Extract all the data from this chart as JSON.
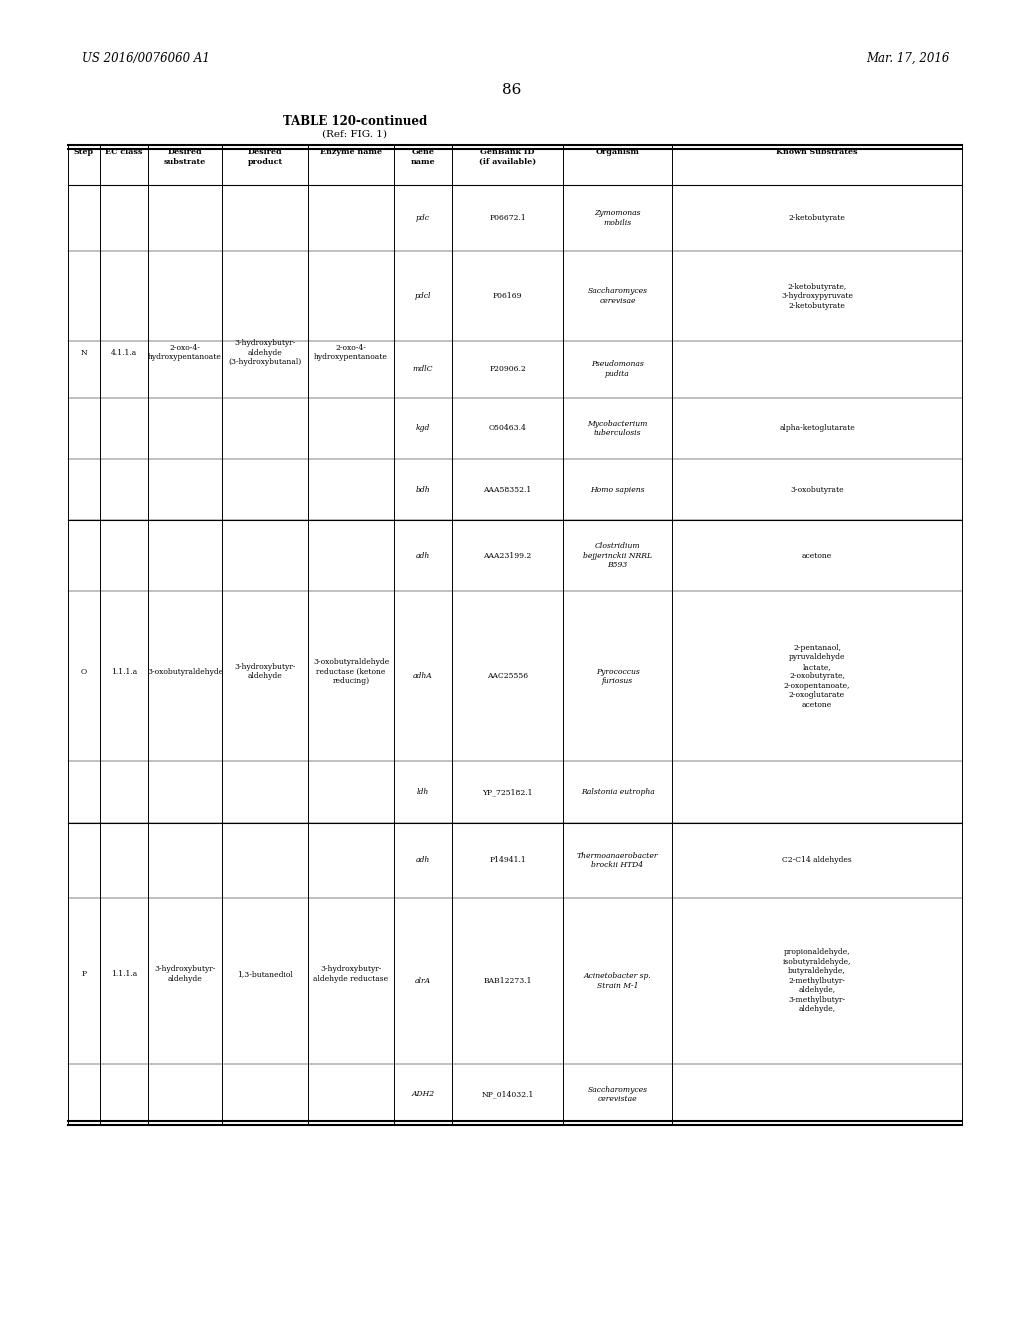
{
  "patent_left": "US 2016/0076060 A1",
  "patent_right": "Mar. 17, 2016",
  "page_number": "86",
  "table_title": "TABLE 120-continued",
  "table_subtitle": "(Ref: FIG. 1)",
  "col_headers": [
    "Step",
    "EC class",
    "Desired\nsubstrate",
    "Desired\nproduct",
    "Enzyme name",
    "Gene\nname",
    "GenBank ID\n(if available)",
    "Organism",
    "Known Substrates"
  ],
  "groups": [
    {
      "step": "N",
      "ec": "4.1.1.a",
      "substrate": "2-oxo-4-\nhydroxypentanoate",
      "product": "3-hydroxybutyr-\naldehyde\n(3-hydroxybutanal)",
      "enzyme": "2-oxo-4-\nhydroxypentanoate",
      "rows": [
        {
          "gene": "pdc",
          "genbank": "P06672.1",
          "organism": "Zymomonas\nmobilis",
          "substrates": "2-ketobutyrate"
        },
        {
          "gene": "pdcl",
          "genbank": "P06169",
          "organism": "Saccharomyces\ncerevisae",
          "substrates": "2-ketobutyrate,\n3-hydroxypyruvate\n2-ketobutyrate"
        },
        {
          "gene": "mdlC",
          "genbank": "P20906.2",
          "organism": "Pseudomonas\npudita",
          "substrates": ""
        },
        {
          "gene": "kgd",
          "genbank": "O50463.4",
          "organism": "Mycobacterium\ntuberculosis",
          "substrates": "alpha-ketoglutarate"
        },
        {
          "gene": "bdh",
          "genbank": "AAA58352.1",
          "organism": "Homo sapiens",
          "substrates": "3-oxobutyrate"
        }
      ]
    },
    {
      "step": "O",
      "ec": "1.1.1.a",
      "substrate": "3-oxobutyraldehyde",
      "product": "3-hydroxybutyr-\naldehyde",
      "enzyme": "3-oxobutyraldehyde\nreductase (ketone\nreducing)",
      "rows": [
        {
          "gene": "adh",
          "genbank": "AAA23199.2",
          "organism": "Clostridium\nbejjerinckii NRRL\nB593",
          "substrates": "acetone"
        },
        {
          "gene": "adhA",
          "genbank": "AAC25556",
          "organism": "Pyrococcus\nfuriosus",
          "substrates": "2-pentanaol,\npyruvaldehyde\nlactate,\n2-oxobutyrate,\n2-oxopentanoate,\n2-oxoglutarate\nacetone"
        },
        {
          "gene": "ldh",
          "genbank": "YP_725182.1",
          "organism": "Ralstonia eutropha",
          "substrates": ""
        }
      ]
    },
    {
      "step": "P",
      "ec": "1.1.1.a",
      "substrate": "3-hydroxybutyr-\naldehyde",
      "product": "1,3-butanediol",
      "enzyme": "3-hydroxybutyr-\naldehyde reductase",
      "rows": [
        {
          "gene": "adh",
          "genbank": "P14941.1",
          "organism": "Thermoanaerobacter\nbrockii HTD4",
          "substrates": "C2-C14 aldehydes"
        },
        {
          "gene": "alrA",
          "genbank": "BAB12273.1",
          "organism": "Acinetobacter sp.\nStrain M-1",
          "substrates": "propionaldehyde,\nisobutyraldehyde,\nbutyraldehyde,\n2-methylbutyr-\naldehyde,\n3-methylbutyr-\naldehyde,"
        },
        {
          "gene": "ADH2",
          "genbank": "NP_014032.1",
          "organism": "Saccharomyces\ncerevistae",
          "substrates": ""
        }
      ]
    }
  ]
}
